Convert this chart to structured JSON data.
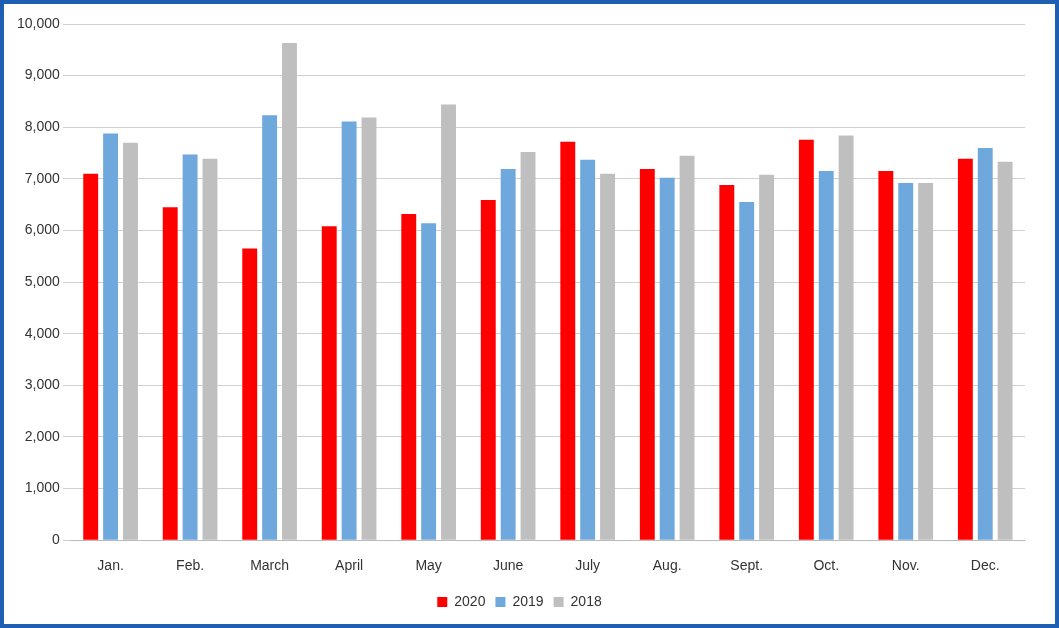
{
  "chart_data": {
    "type": "bar",
    "categories": [
      "Jan.",
      "Feb.",
      "March",
      "April",
      "May",
      "June",
      "July",
      "Aug.",
      "Sept.",
      "Oct.",
      "Nov.",
      "Dec."
    ],
    "series": [
      {
        "name": "2020",
        "color": "#ff0000",
        "values": [
          7100,
          6450,
          5650,
          6080,
          6320,
          6590,
          7720,
          7190,
          6880,
          7760,
          7150,
          7390
        ]
      },
      {
        "name": "2019",
        "color": "#6fa8dc",
        "values": [
          7880,
          7470,
          8230,
          8110,
          6140,
          7190,
          7370,
          7020,
          6550,
          7150,
          6920,
          7600
        ]
      },
      {
        "name": "2018",
        "color": "#bfbfbf",
        "values": [
          7700,
          7390,
          9630,
          8190,
          8440,
          7520,
          7100,
          7450,
          7080,
          7840,
          6920,
          7330
        ]
      }
    ],
    "ylim": [
      0,
      10000
    ],
    "yticks": [
      {
        "value": 0,
        "label": "0"
      },
      {
        "value": 1000,
        "label": "1,000"
      },
      {
        "value": 2000,
        "label": "2,000"
      },
      {
        "value": 3000,
        "label": "3,000"
      },
      {
        "value": 4000,
        "label": "4,000"
      },
      {
        "value": 5000,
        "label": "5,000"
      },
      {
        "value": 6000,
        "label": "6,000"
      },
      {
        "value": 7000,
        "label": "7,000"
      },
      {
        "value": 8000,
        "label": "8,000"
      },
      {
        "value": 9000,
        "label": "9,000"
      },
      {
        "value": 10000,
        "label": "10,000"
      }
    ],
    "grid": "y",
    "legend": "bottom"
  }
}
